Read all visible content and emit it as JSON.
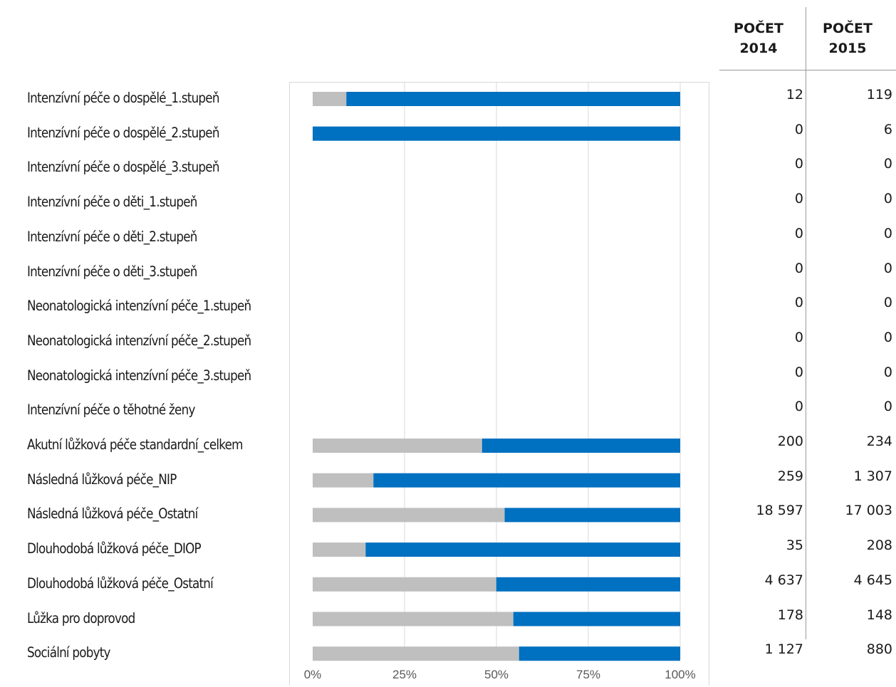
{
  "chart_data": {
    "type": "bar",
    "orientation": "horizontal",
    "stacked": "percent",
    "categories": [
      "Intenzívní péče o dospělé_1.stupeň",
      "Intenzívní péče o dospělé_2.stupeň",
      "Intenzívní péče o dospělé_3.stupeň",
      "Intenzívní péče o děti_1.stupeň",
      "Intenzívní péče o děti_2.stupeň",
      "Intenzívní péče o děti_3.stupeň",
      "Neonatologická intenzívní péče_1.stupeň",
      "Neonatologická intenzívní péče_2.stupeň",
      "Neonatologická intenzívní péče_3.stupeň",
      "Intenzívní péče o těhotné ženy",
      "Akutní lůžková péče standardní_celkem",
      "Následná lůžková péče_NIP",
      "Následná lůžková péče_Ostatní",
      "Dlouhodobá lůžková péče_DIOP",
      "Dlouhodobá lůžková péče_Ostatní",
      "Lůžka pro doprovod",
      "Sociální pobyty"
    ],
    "series": [
      {
        "values": [
          12,
          0,
          0,
          0,
          0,
          0,
          0,
          0,
          0,
          0,
          200,
          259,
          18597,
          35,
          4637,
          178,
          1127
        ],
        "color": "#bfbfbf"
      },
      {
        "values": [
          119,
          6,
          0,
          0,
          0,
          0,
          0,
          0,
          0,
          0,
          234,
          1307,
          17003,
          208,
          4645,
          148,
          880
        ],
        "color": "#0070c0"
      }
    ],
    "xlim": [
      0,
      100
    ],
    "x_ticks": [
      "0%",
      "25%",
      "50%",
      "75%",
      "100%"
    ],
    "grid": true
  },
  "table": {
    "headers": [
      {
        "line1": "POČET",
        "line2": "2014"
      },
      {
        "line1": "POČET",
        "line2": "2015"
      }
    ],
    "col_2014": [
      "12",
      "0",
      "0",
      "0",
      "0",
      "0",
      "0",
      "0",
      "0",
      "0",
      "200",
      "259",
      "18 597",
      "35",
      "4 637",
      "178",
      "1 127"
    ],
    "col_2015": [
      "119",
      "6",
      "0",
      "0",
      "0",
      "0",
      "0",
      "0",
      "0",
      "0",
      "234",
      "1 307",
      "17 003",
      "208",
      "4 645",
      "148",
      "880"
    ]
  }
}
